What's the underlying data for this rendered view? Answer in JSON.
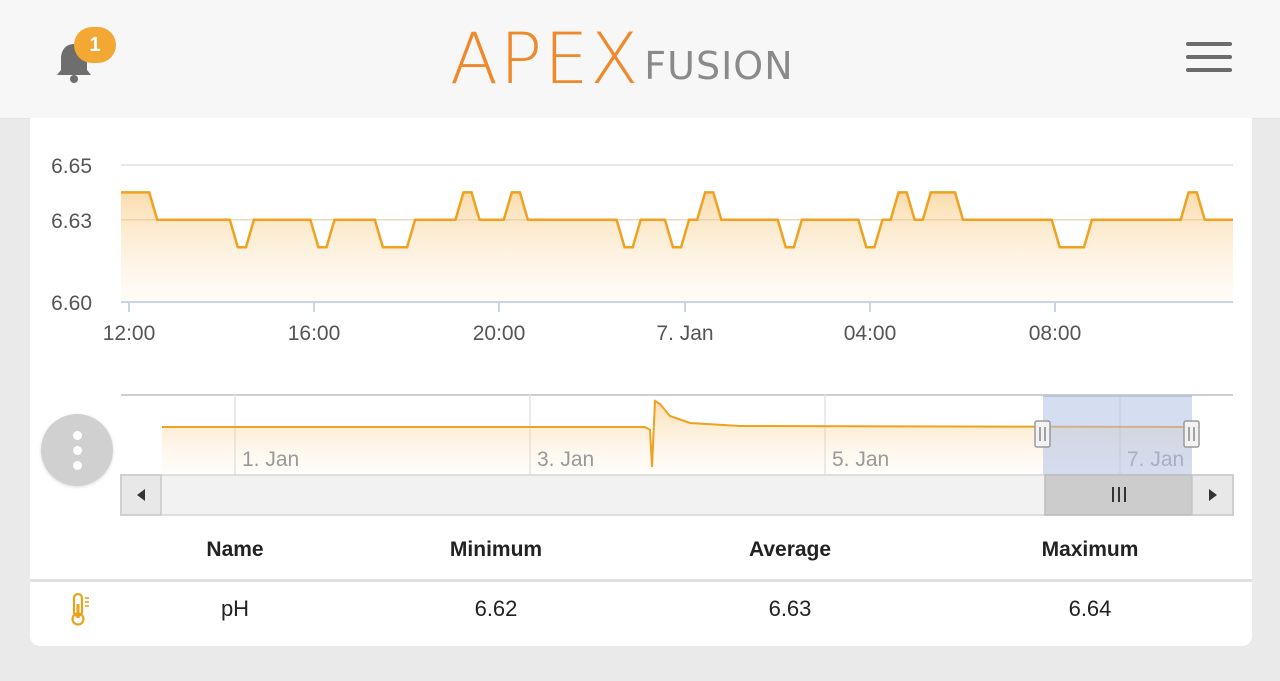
{
  "header": {
    "notification_count": "1",
    "logo_primary": "APEX",
    "logo_secondary": "FUSION",
    "accent_color": "#ef8a2c"
  },
  "chart_data": {
    "type": "area",
    "y_ticks": [
      "6.65",
      "6.63",
      "6.60"
    ],
    "ylim": [
      6.6,
      6.65
    ],
    "x_ticks": [
      "12:00",
      "16:00",
      "20:00",
      "7. Jan",
      "04:00",
      "08:00"
    ],
    "series": [
      {
        "values": [
          6.64,
          6.64,
          6.63,
          6.63,
          6.63,
          6.63,
          6.63,
          6.62,
          6.63,
          6.63,
          6.63,
          6.63,
          6.62,
          6.63,
          6.63,
          6.63,
          6.62,
          6.62,
          6.63,
          6.63,
          6.63,
          6.64,
          6.63,
          6.63,
          6.64,
          6.63,
          6.63,
          6.63,
          6.63,
          6.63,
          6.63,
          6.62,
          6.63,
          6.63,
          6.62,
          6.63,
          6.64,
          6.63,
          6.63,
          6.63,
          6.63,
          6.62,
          6.63,
          6.63,
          6.63,
          6.63,
          6.62,
          6.63,
          6.64,
          6.63,
          6.64,
          6.64,
          6.63,
          6.63,
          6.63,
          6.63,
          6.63,
          6.63,
          6.62,
          6.62,
          6.63,
          6.63,
          6.63,
          6.63,
          6.63,
          6.63,
          6.64,
          6.63,
          6.63
        ]
      }
    ],
    "navigator": {
      "x_ticks": [
        "1. Jan",
        "3. Jan",
        "5. Jan",
        "7. Jan"
      ]
    }
  },
  "stats_table": {
    "headers": {
      "name": "Name",
      "minimum": "Minimum",
      "average": "Average",
      "maximum": "Maximum"
    },
    "row": {
      "icon": "thermometer-icon",
      "name": "pH",
      "minimum": "6.62",
      "average": "6.63",
      "maximum": "6.64"
    }
  }
}
